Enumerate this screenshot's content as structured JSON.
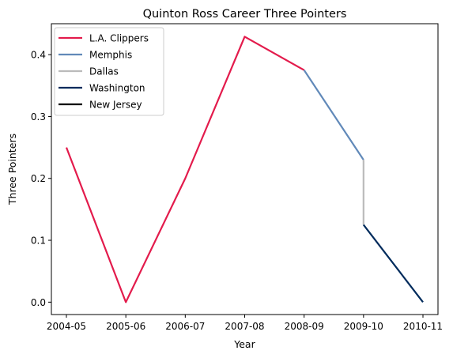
{
  "chart_data": {
    "type": "line",
    "title": "Quinton Ross Career Three Pointers",
    "xlabel": "Year",
    "ylabel": "Three Pointers",
    "categories": [
      "2004-05",
      "2005-06",
      "2006-07",
      "2007-08",
      "2008-09",
      "2009-10",
      "2010-11"
    ],
    "yticks": [
      "0.0",
      "0.1",
      "0.2",
      "0.3",
      "0.4"
    ],
    "ylim": [
      -0.02,
      0.45
    ],
    "grid": false,
    "legend_position": "top-left",
    "series": [
      {
        "name": "L.A. Clippers",
        "color": "#E31B4C",
        "points": [
          [
            "2004-05",
            0.25
          ],
          [
            "2005-06",
            0.0
          ],
          [
            "2006-07",
            0.2
          ],
          [
            "2007-08",
            0.429
          ],
          [
            "2008-09",
            0.375
          ]
        ]
      },
      {
        "name": "Memphis",
        "color": "#6189B9",
        "points": [
          [
            "2008-09",
            0.375
          ],
          [
            "2009-10",
            0.23
          ]
        ]
      },
      {
        "name": "Dallas",
        "color": "#BBBBBB",
        "points": [
          [
            "2009-10",
            0.23
          ],
          [
            "2009-10",
            0.125
          ]
        ]
      },
      {
        "name": "Washington",
        "color": "#002B5C",
        "points": [
          [
            "2009-10",
            0.125
          ],
          [
            "2010-11",
            0.0
          ]
        ]
      },
      {
        "name": "New Jersey",
        "color": "#000000",
        "points": []
      }
    ]
  }
}
